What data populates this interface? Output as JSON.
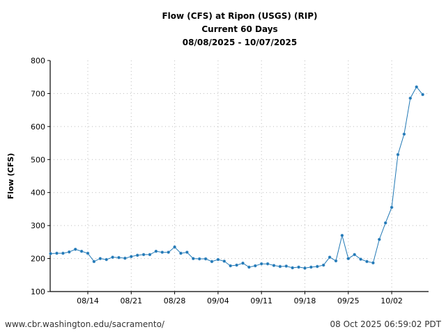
{
  "chart_data": {
    "type": "line",
    "title": [
      "Flow (CFS) at Ripon (USGS) (RIP)",
      "Current 60 Days",
      "08/08/2025 - 10/07/2025"
    ],
    "xlabel": "",
    "ylabel": "Flow (CFS)",
    "ylim": [
      100,
      800
    ],
    "yticks": [
      100,
      200,
      300,
      400,
      500,
      600,
      700,
      800
    ],
    "xtick_labels": [
      "08/14",
      "08/21",
      "08/28",
      "09/04",
      "09/11",
      "09/18",
      "09/25",
      "10/02"
    ],
    "xtick_day_index": [
      6,
      13,
      20,
      27,
      34,
      41,
      48,
      55
    ],
    "grid": true,
    "start_date": "08/08/2025",
    "series": [
      {
        "name": "Flow (CFS)",
        "color": "#1f77b4",
        "values": [
          215,
          216,
          216,
          220,
          228,
          222,
          216,
          191,
          200,
          197,
          204,
          203,
          201,
          206,
          210,
          212,
          212,
          222,
          219,
          219,
          235,
          216,
          219,
          200,
          199,
          199,
          191,
          197,
          192,
          178,
          180,
          186,
          174,
          178,
          184,
          184,
          179,
          176,
          177,
          172,
          174,
          171,
          174,
          176,
          180,
          204,
          193,
          270,
          200,
          212,
          198,
          191,
          187,
          258,
          308,
          355,
          515,
          577,
          686,
          720,
          697
        ]
      }
    ]
  },
  "footer": {
    "source_url": "www.cbr.washington.edu/sacramento/",
    "timestamp": "08 Oct 2025 06:59:02 PDT"
  }
}
